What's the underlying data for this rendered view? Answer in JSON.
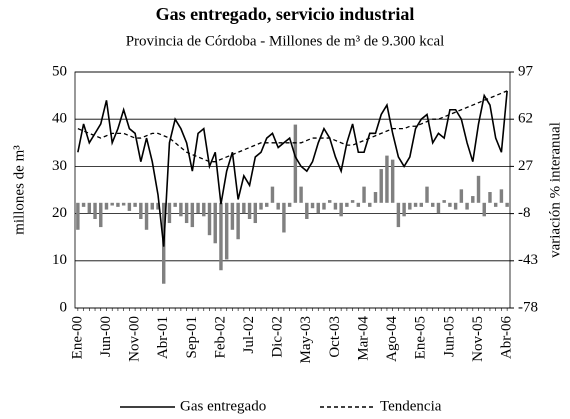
{
  "chart_data": {
    "type": "line",
    "title": "Gas entregado, servicio industrial",
    "subtitle": "Provincia de Córdoba - Millones de m³ de 9.300 kcal",
    "ylabel": "millones de m³",
    "y2label": "variación % interanual",
    "categories": [
      "Ene-00",
      null,
      null,
      null,
      null,
      "Jun-00",
      null,
      null,
      null,
      null,
      "Nov-00",
      null,
      null,
      null,
      null,
      "Abr-01",
      null,
      null,
      null,
      null,
      "Sep-01",
      null,
      null,
      null,
      null,
      "Feb-02",
      null,
      null,
      null,
      null,
      "Jul-02",
      null,
      null,
      null,
      null,
      "Dic-02",
      null,
      null,
      null,
      null,
      "May-03",
      null,
      null,
      null,
      null,
      "Oct-03",
      null,
      null,
      null,
      null,
      "Mar-04",
      null,
      null,
      null,
      null,
      "Ago-04",
      null,
      null,
      null,
      null,
      "Ene-05",
      null,
      null,
      null,
      null,
      "Jun-05",
      null,
      null,
      null,
      null,
      "Nov-05",
      null,
      null,
      null,
      null,
      "Abr-06"
    ],
    "series": [
      {
        "name": "Gas entregado",
        "type": "line",
        "color": "#000000",
        "dash": false,
        "values": [
          33,
          39,
          35,
          37,
          39,
          44,
          35,
          38,
          42,
          38,
          37,
          31,
          36,
          31,
          24,
          13,
          35,
          40,
          38,
          35,
          29,
          37,
          38,
          30,
          33,
          22,
          29,
          33,
          23,
          28,
          26,
          32,
          33,
          36,
          37,
          34,
          35,
          36,
          32,
          30,
          29,
          31,
          35,
          38,
          36,
          32,
          29,
          35,
          39,
          33,
          33,
          37,
          37,
          41,
          43,
          37,
          32,
          30,
          32,
          38,
          40,
          41,
          35,
          37,
          36,
          42,
          42,
          40,
          35,
          31,
          39,
          45,
          43,
          36,
          33,
          46
        ]
      },
      {
        "name": "Tendencia",
        "type": "line",
        "color": "#000000",
        "dash": true,
        "values": [
          38,
          37.5,
          37,
          36.5,
          36,
          36.5,
          37,
          37,
          37,
          36.5,
          36,
          36,
          36.5,
          37,
          37,
          36.5,
          36,
          35,
          34,
          33,
          32.5,
          32,
          31.5,
          31,
          31,
          31.5,
          32,
          32.5,
          33,
          33.5,
          34,
          34.5,
          35,
          35,
          35,
          35,
          35,
          35,
          35,
          35,
          35.5,
          36,
          36,
          36,
          36,
          35.5,
          35,
          34.5,
          34.5,
          35,
          35.5,
          36,
          36.5,
          37,
          37.5,
          38,
          38,
          38,
          38.5,
          38.5,
          39,
          39.5,
          40,
          40,
          40.5,
          41,
          41.5,
          42,
          42.5,
          43,
          43.5,
          44,
          44.5,
          45,
          45.5,
          46
        ]
      },
      {
        "type": "bar",
        "axis": "y2",
        "color": "#808080",
        "values": [
          -20,
          -3,
          -8,
          -12,
          -18,
          -5,
          -2,
          -3,
          -2,
          -6,
          -3,
          -12,
          -20,
          -5,
          -5,
          -60,
          -15,
          -3,
          -10,
          -15,
          -18,
          -8,
          -10,
          -24,
          -30,
          -50,
          -42,
          -20,
          -27,
          -8,
          -12,
          -15,
          -5,
          -3,
          12,
          -5,
          -22,
          -3,
          58,
          12,
          -12,
          -4,
          -8,
          -5,
          2,
          -5,
          -10,
          -3,
          2,
          -3,
          12,
          -3,
          8,
          25,
          35,
          32,
          -18,
          -10,
          -5,
          -3,
          -3,
          12,
          -3,
          -8,
          2,
          -3,
          -5,
          10,
          -5,
          5,
          20,
          -10,
          8,
          -3,
          10,
          -3
        ]
      }
    ],
    "ylim": [
      0,
      50
    ],
    "yticks": [
      0,
      10,
      20,
      30,
      40,
      50
    ],
    "y2lim": [
      -78,
      97
    ],
    "y2ticks": [
      -78,
      -43,
      -8,
      27,
      62,
      97
    ],
    "grid": true,
    "legend": "bottom"
  }
}
